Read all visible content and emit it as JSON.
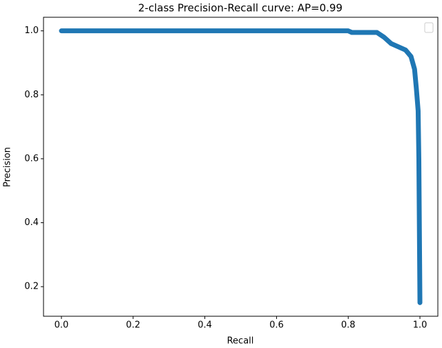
{
  "chart_data": {
    "type": "line",
    "title": "2-class Precision-Recall curve: AP=0.99",
    "x_label": "Recall",
    "y_label": "Precision",
    "x": [
      0.0,
      0.8,
      0.81,
      0.88,
      0.9,
      0.92,
      0.94,
      0.96,
      0.975,
      0.985,
      0.99,
      0.995,
      0.997,
      0.998,
      0.999,
      1.0
    ],
    "series": [
      {
        "color": "#1f77b4",
        "values": [
          1.0,
          1.0,
          0.995,
          0.995,
          0.98,
          0.96,
          0.95,
          0.94,
          0.92,
          0.88,
          0.82,
          0.75,
          0.6,
          0.45,
          0.3,
          0.15
        ]
      }
    ],
    "xlim": [
      -0.05,
      1.05
    ],
    "ylim": [
      0.1075,
      1.0425
    ],
    "xticks": [
      {
        "value": 0,
        "label": "0.0"
      },
      0.2,
      0.4,
      0.6,
      0.8,
      {
        "value": 1,
        "label": "1.0"
      }
    ],
    "yticks": [
      0.2,
      0.4,
      0.6,
      0.8,
      {
        "value": 1,
        "label": "1.0"
      }
    ],
    "legend": "upper right"
  }
}
